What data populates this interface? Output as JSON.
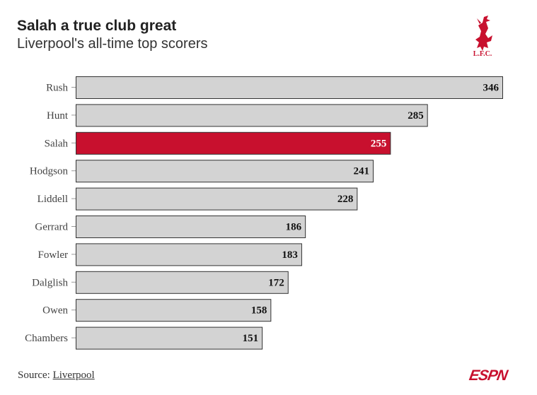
{
  "header": {
    "title": "Salah a true club great",
    "subtitle": "Liverpool's all-time top scorers"
  },
  "logo": {
    "icon": "liverbird-icon",
    "text": "L.F.C.",
    "color": "#c8102e"
  },
  "footer": {
    "source_prefix": "Source: ",
    "source_link": "Liverpool",
    "brand": "ESPN"
  },
  "colors": {
    "highlight": "#c8102e",
    "bar": "#d3d3d3",
    "bar_stroke": "#333333"
  },
  "chart_data": {
    "type": "bar",
    "orientation": "horizontal",
    "title": "Salah a true club great",
    "subtitle": "Liverpool's all-time top scorers",
    "xlabel": "",
    "ylabel": "",
    "xlim": [
      0,
      346
    ],
    "grid": false,
    "legend": "none",
    "highlight": "Salah",
    "categories": [
      "Rush",
      "Hunt",
      "Salah",
      "Hodgson",
      "Liddell",
      "Gerrard",
      "Fowler",
      "Dalglish",
      "Owen",
      "Chambers"
    ],
    "values": [
      346,
      285,
      255,
      241,
      228,
      186,
      183,
      172,
      158,
      151
    ]
  }
}
